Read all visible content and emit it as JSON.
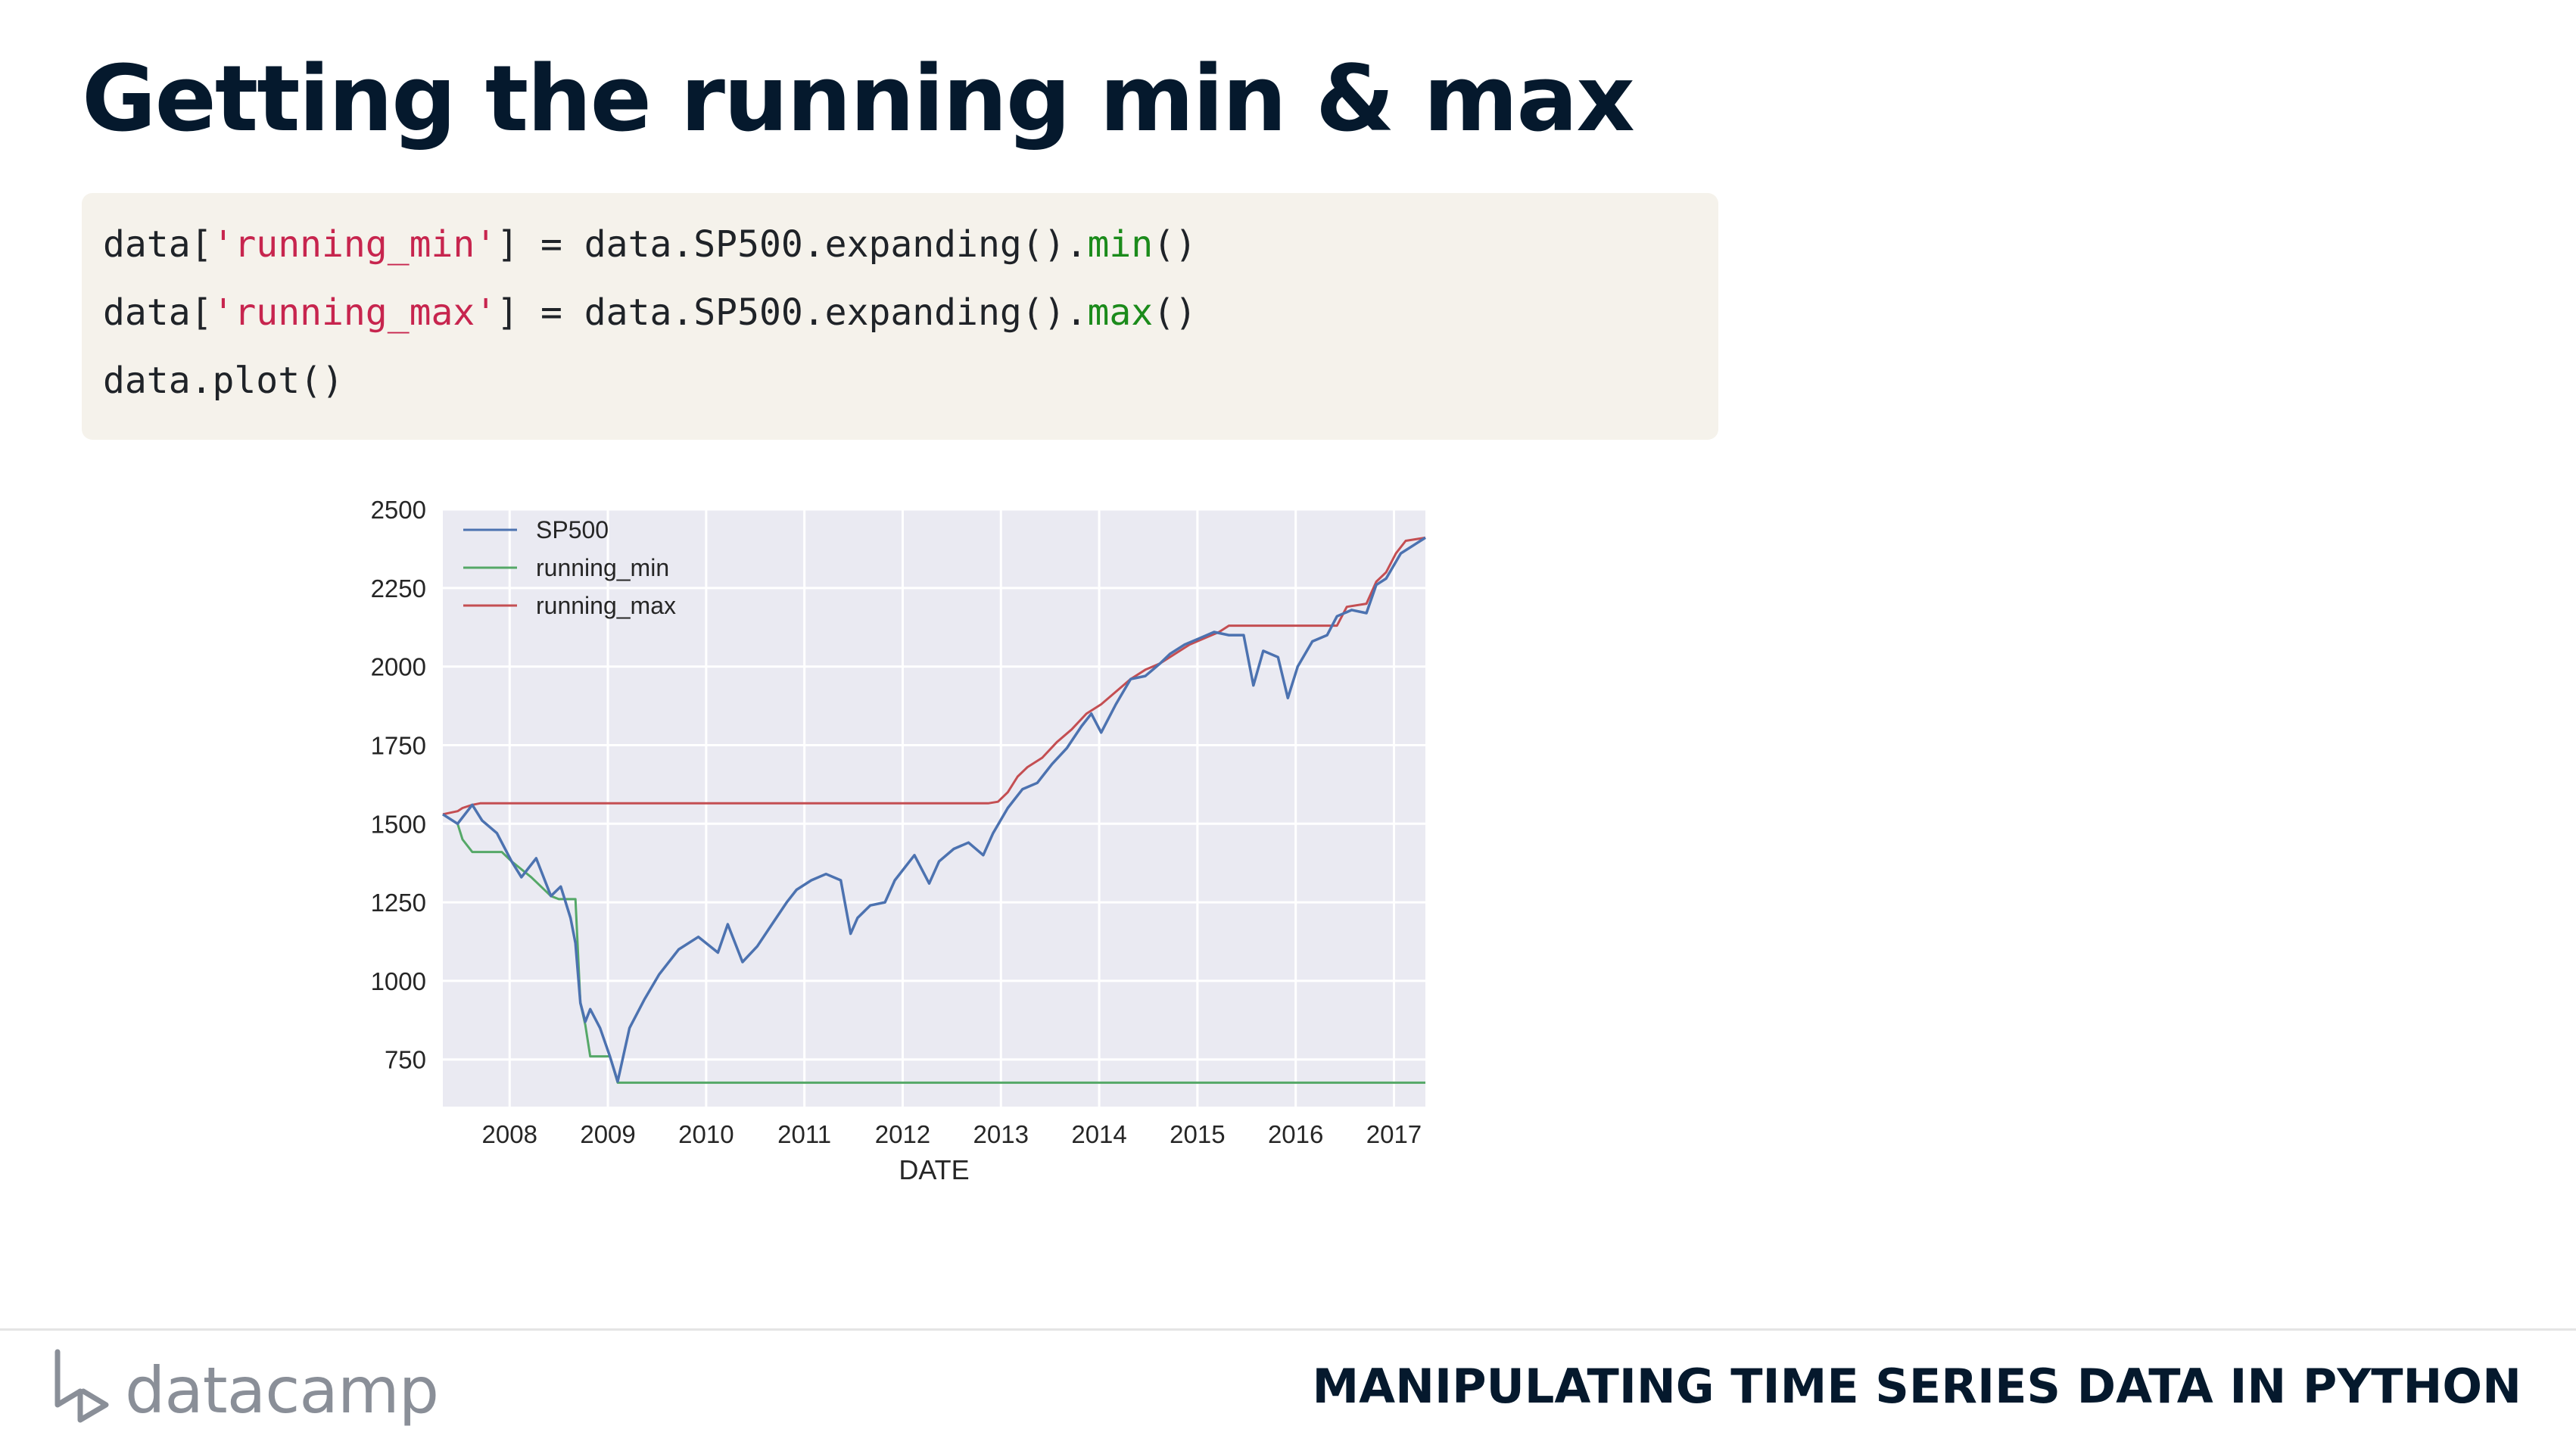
{
  "slide": {
    "title": "Getting the running min & max",
    "course": "MANIPULATING TIME SERIES DATA IN PYTHON",
    "brand": "datacamp"
  },
  "code": {
    "line1": {
      "a": "data[",
      "s": "'running_min'",
      "b": "] = data.SP500.expanding().",
      "f": "min",
      "c": "()"
    },
    "line2": {
      "a": "data[",
      "s": "'running_max'",
      "b": "] = data.SP500.expanding().",
      "f": "max",
      "c": "()"
    },
    "line3": "data.plot()"
  },
  "colors": {
    "title": "#05192d",
    "code_bg": "#f5f2eb",
    "plot_bg": "#eaeaf2",
    "sp500": "#4c72b0",
    "running_min": "#55a868",
    "running_max": "#c44e52"
  },
  "chart_data": {
    "type": "line",
    "title": "",
    "xlabel": "DATE",
    "ylabel": "",
    "xlim": [
      2007.4,
      2017.4
    ],
    "ylim": [
      600,
      2500
    ],
    "x_ticks": [
      "2008",
      "2009",
      "2010",
      "2011",
      "2012",
      "2013",
      "2014",
      "2015",
      "2016",
      "2017"
    ],
    "y_ticks": [
      "750",
      "1000",
      "1250",
      "1500",
      "1750",
      "2000",
      "2250",
      "2500"
    ],
    "grid": true,
    "legend_position": "top-left",
    "series": [
      {
        "name": "SP500",
        "x": [
          2007.4,
          2007.55,
          2007.7,
          2007.8,
          2007.95,
          2008.1,
          2008.2,
          2008.35,
          2008.5,
          2008.6,
          2008.7,
          2008.75,
          2008.8,
          2008.85,
          2008.9,
          2009.0,
          2009.1,
          2009.18,
          2009.3,
          2009.45,
          2009.6,
          2009.8,
          2010.0,
          2010.2,
          2010.3,
          2010.45,
          2010.6,
          2010.75,
          2010.9,
          2011.0,
          2011.15,
          2011.3,
          2011.45,
          2011.55,
          2011.62,
          2011.75,
          2011.9,
          2012.0,
          2012.2,
          2012.35,
          2012.45,
          2012.6,
          2012.75,
          2012.9,
          2013.0,
          2013.15,
          2013.3,
          2013.45,
          2013.6,
          2013.75,
          2013.9,
          2014.0,
          2014.1,
          2014.25,
          2014.4,
          2014.55,
          2014.7,
          2014.8,
          2014.95,
          2015.1,
          2015.25,
          2015.4,
          2015.55,
          2015.65,
          2015.75,
          2015.9,
          2016.0,
          2016.1,
          2016.25,
          2016.4,
          2016.5,
          2016.65,
          2016.8,
          2016.9,
          2017.0,
          2017.15,
          2017.3,
          2017.4
        ],
        "y": [
          1530,
          1500,
          1560,
          1510,
          1470,
          1380,
          1330,
          1390,
          1270,
          1300,
          1200,
          1120,
          930,
          870,
          910,
          850,
          760,
          680,
          850,
          940,
          1020,
          1100,
          1140,
          1090,
          1180,
          1060,
          1110,
          1180,
          1250,
          1290,
          1320,
          1340,
          1320,
          1150,
          1200,
          1240,
          1250,
          1320,
          1400,
          1310,
          1380,
          1420,
          1440,
          1400,
          1470,
          1550,
          1610,
          1630,
          1690,
          1740,
          1810,
          1850,
          1790,
          1880,
          1960,
          1970,
          2010,
          2040,
          2070,
          2090,
          2110,
          2100,
          2100,
          1940,
          2050,
          2030,
          1900,
          2000,
          2080,
          2100,
          2160,
          2180,
          2170,
          2260,
          2280,
          2360,
          2390,
          2410
        ]
      },
      {
        "name": "running_min",
        "x": [
          2007.4,
          2007.55,
          2007.6,
          2007.7,
          2008.0,
          2008.1,
          2008.3,
          2008.5,
          2008.58,
          2008.75,
          2008.8,
          2008.85,
          2008.9,
          2009.1,
          2009.18,
          2017.4
        ],
        "y": [
          1530,
          1500,
          1450,
          1410,
          1410,
          1380,
          1330,
          1270,
          1260,
          1260,
          930,
          860,
          760,
          760,
          676,
          676
        ]
      },
      {
        "name": "running_max",
        "x": [
          2007.4,
          2007.55,
          2007.6,
          2007.7,
          2007.78,
          2012.95,
          2013.05,
          2013.15,
          2013.25,
          2013.35,
          2013.5,
          2013.65,
          2013.8,
          2013.95,
          2014.1,
          2014.25,
          2014.4,
          2014.55,
          2014.7,
          2014.85,
          2015.0,
          2015.15,
          2015.3,
          2015.4,
          2016.5,
          2016.6,
          2016.8,
          2016.9,
          2017.0,
          2017.1,
          2017.2,
          2017.4
        ],
        "y": [
          1530,
          1540,
          1550,
          1560,
          1565,
          1565,
          1570,
          1600,
          1650,
          1680,
          1710,
          1760,
          1800,
          1850,
          1880,
          1920,
          1960,
          1990,
          2010,
          2040,
          2070,
          2090,
          2110,
          2130,
          2130,
          2190,
          2200,
          2270,
          2300,
          2360,
          2400,
          2410
        ]
      }
    ]
  }
}
